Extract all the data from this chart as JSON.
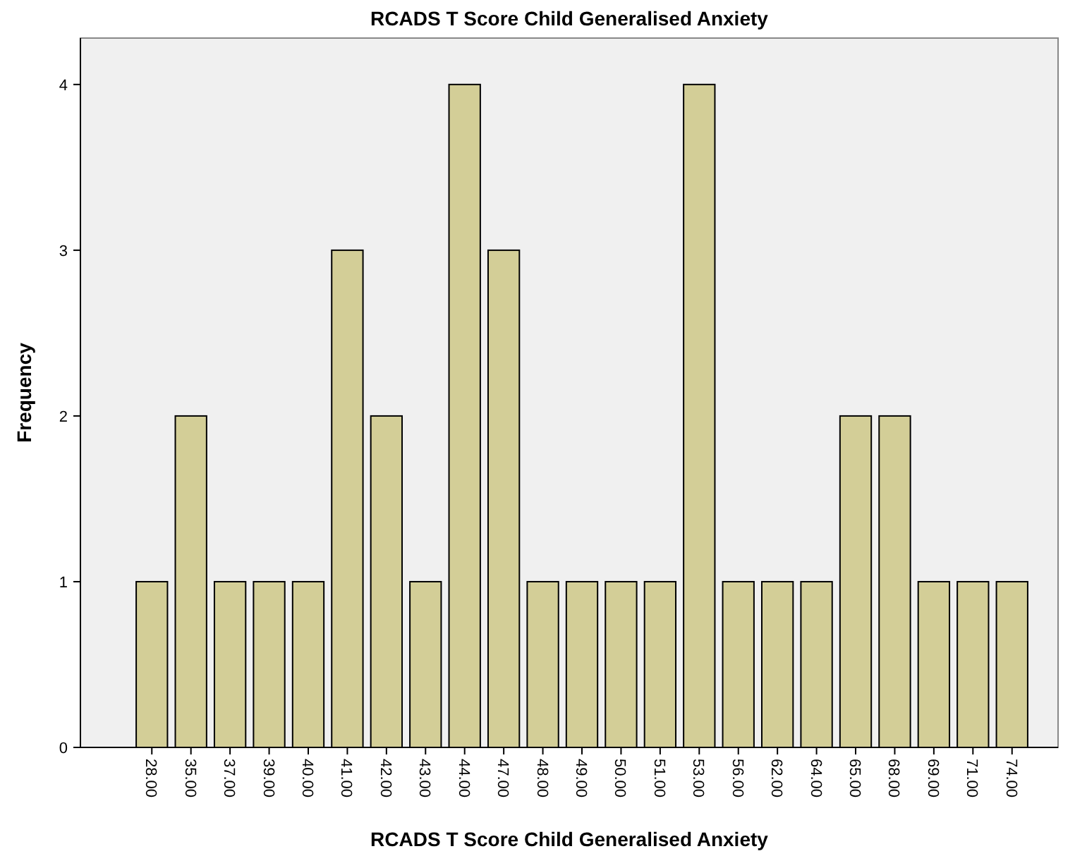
{
  "chart_data": {
    "type": "bar",
    "title": "RCADS T Score Child Generalised Anxiety",
    "xlabel": "RCADS T Score Child Generalised Anxiety",
    "ylabel": "Frequency",
    "categories": [
      "28.00",
      "35.00",
      "37.00",
      "39.00",
      "40.00",
      "41.00",
      "42.00",
      "43.00",
      "44.00",
      "47.00",
      "48.00",
      "49.00",
      "50.00",
      "51.00",
      "53.00",
      "56.00",
      "62.00",
      "64.00",
      "65.00",
      "68.00",
      "69.00",
      "71.00",
      "74.00"
    ],
    "values": [
      1,
      2,
      1,
      1,
      1,
      3,
      2,
      1,
      4,
      3,
      1,
      1,
      1,
      1,
      4,
      1,
      1,
      1,
      2,
      2,
      1,
      1,
      1
    ],
    "color": "#d3ce97",
    "ylim": [
      0,
      4.28
    ],
    "yticks": [
      0,
      1,
      2,
      3,
      4
    ],
    "grid": false
  }
}
